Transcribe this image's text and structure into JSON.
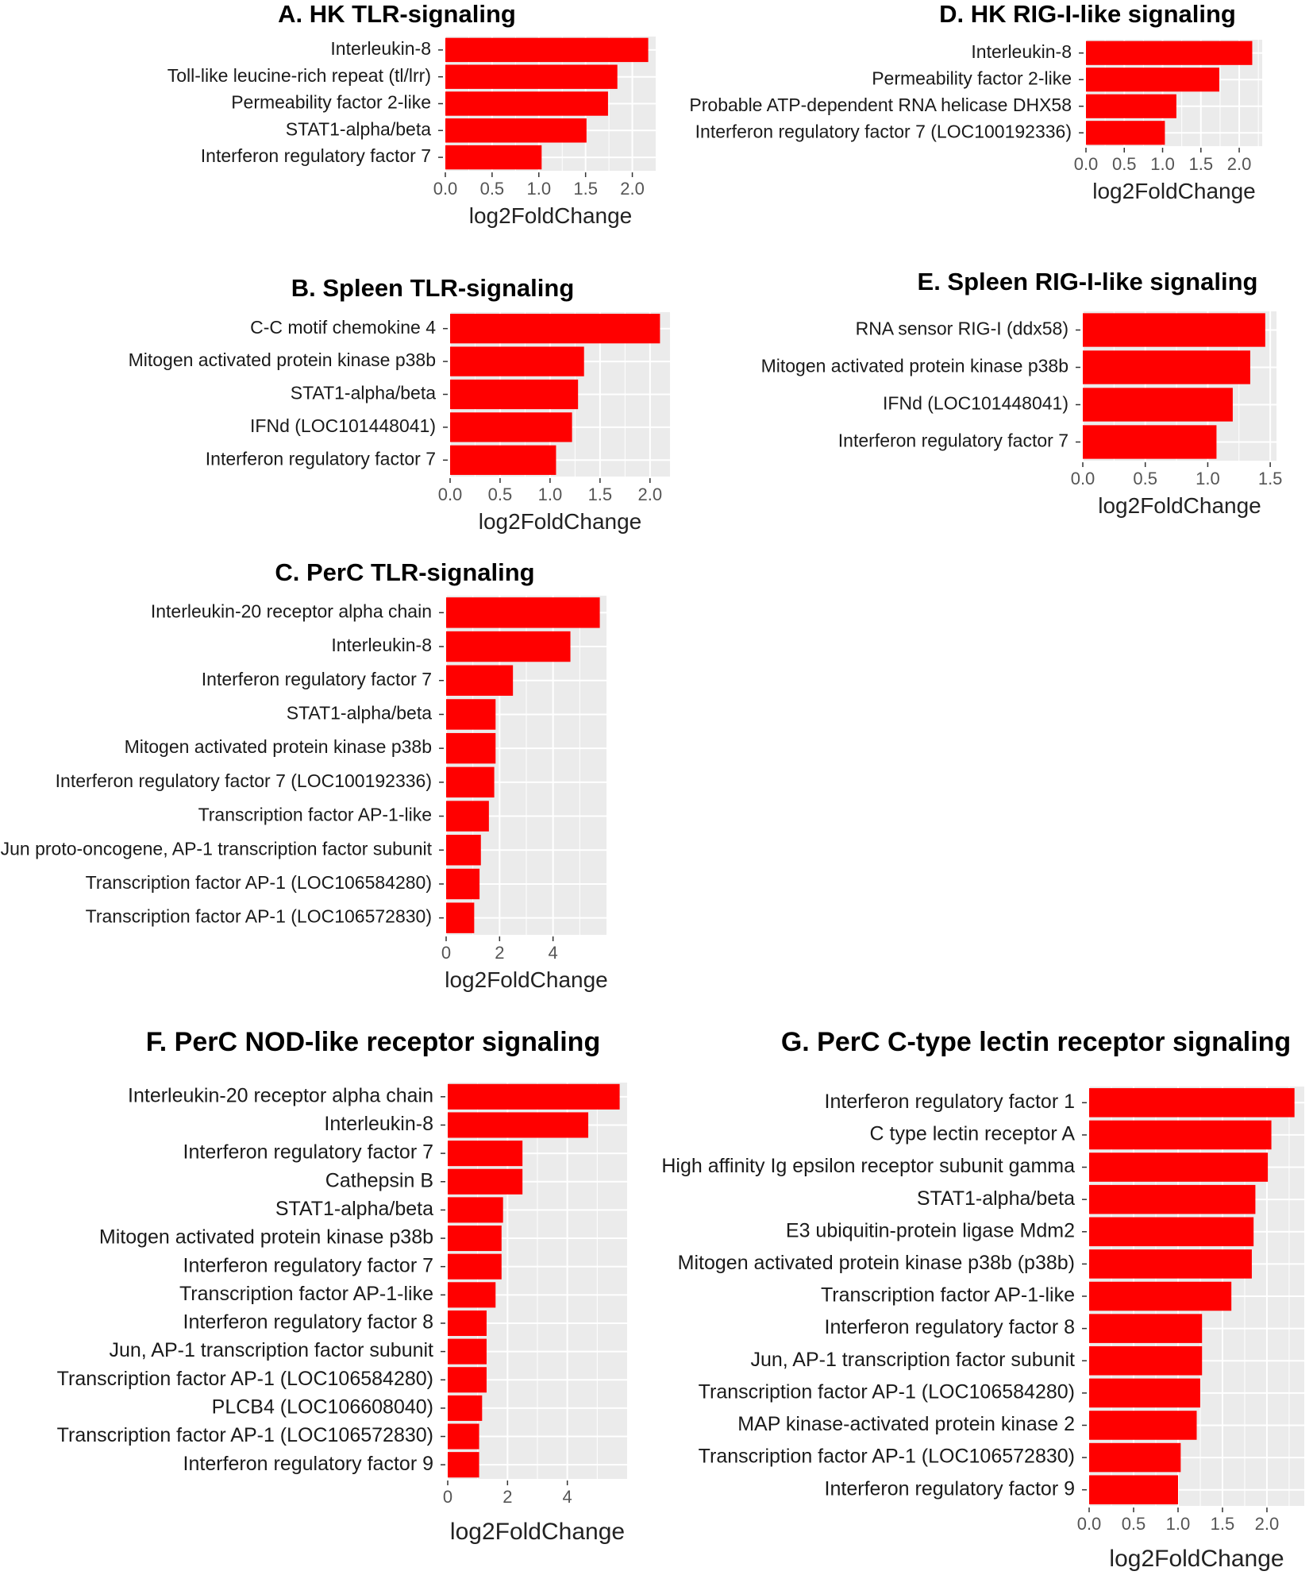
{
  "colors": {
    "bar": "#ff0000",
    "panel_bg": "#ebebeb",
    "grid": "#ffffff"
  },
  "chart_data": [
    {
      "id": "A",
      "type": "bar",
      "orientation": "horizontal",
      "title": "A. HK TLR-signaling",
      "xlabel": "log2FoldChange",
      "ylabel": "",
      "categories": [
        "Interleukin-8",
        "Toll-like leucine-rich repeat (tl/lrr)",
        "Permeability factor 2-like",
        "STAT1-alpha/beta",
        "Interferon regulatory factor 7"
      ],
      "values": [
        2.17,
        1.84,
        1.74,
        1.51,
        1.03
      ],
      "xlim": [
        0,
        2.25
      ],
      "xticks": [
        0,
        0.5,
        1,
        1.5,
        2
      ],
      "xtick_labels": [
        "0.0",
        "0.5",
        "1.0",
        "1.5",
        "2.0"
      ],
      "grid": true
    },
    {
      "id": "D",
      "type": "bar",
      "orientation": "horizontal",
      "title": "D. HK RIG-I-like signaling",
      "xlabel": "log2FoldChange",
      "ylabel": "",
      "categories": [
        "Interleukin-8",
        "Permeability factor 2-like",
        "Probable ATP-dependent RNA helicase DHX58",
        "Interferon regulatory factor 7 (LOC100192336)"
      ],
      "values": [
        2.17,
        1.74,
        1.18,
        1.03
      ],
      "xlim": [
        0,
        2.3
      ],
      "xticks": [
        0,
        0.5,
        1,
        1.5,
        2
      ],
      "xtick_labels": [
        "0.0",
        "0.5",
        "1.0",
        "1.5",
        "2.0"
      ],
      "grid": true
    },
    {
      "id": "B",
      "type": "bar",
      "orientation": "horizontal",
      "title": "B. Spleen TLR-signaling",
      "xlabel": "log2FoldChange",
      "ylabel": "",
      "categories": [
        "C-C motif chemokine 4",
        "Mitogen activated protein kinase p38b",
        "STAT1-alpha/beta",
        "IFNd (LOC101448041)",
        "Interferon regulatory factor 7"
      ],
      "values": [
        2.1,
        1.34,
        1.28,
        1.22,
        1.06
      ],
      "xlim": [
        0,
        2.2
      ],
      "xticks": [
        0,
        0.5,
        1,
        1.5,
        2
      ],
      "xtick_labels": [
        "0.0",
        "0.5",
        "1.0",
        "1.5",
        "2.0"
      ],
      "grid": true
    },
    {
      "id": "E",
      "type": "bar",
      "orientation": "horizontal",
      "title": "E. Spleen RIG-I-like signaling",
      "xlabel": "log2FoldChange",
      "ylabel": "",
      "categories": [
        "RNA sensor RIG-I (ddx58)",
        "Mitogen activated protein kinase p38b",
        "IFNd (LOC101448041)",
        "Interferon regulatory factor 7"
      ],
      "values": [
        1.46,
        1.34,
        1.2,
        1.07
      ],
      "xlim": [
        0,
        1.55
      ],
      "xticks": [
        0,
        0.5,
        1,
        1.5
      ],
      "xtick_labels": [
        "0.0",
        "0.5",
        "1.0",
        "1.5"
      ],
      "grid": true
    },
    {
      "id": "C",
      "type": "bar",
      "orientation": "horizontal",
      "title": "C. PerC TLR-signaling",
      "xlabel": "log2FoldChange",
      "ylabel": "",
      "categories": [
        "Interleukin-20 receptor alpha chain",
        "Interleukin-8",
        "Interferon regulatory factor 7",
        "STAT1-alpha/beta",
        "Mitogen activated protein kinase p38b",
        "Interferon regulatory factor 7 (LOC100192336)",
        "Transcription factor AP-1-like",
        "Jun proto-oncogene, AP-1 transcription factor subunit",
        "Transcription factor AP-1 (LOC106584280)",
        "Transcription factor AP-1 (LOC106572830)"
      ],
      "values": [
        5.75,
        4.65,
        2.5,
        1.85,
        1.85,
        1.8,
        1.6,
        1.3,
        1.25,
        1.05
      ],
      "xlim": [
        0,
        6.0
      ],
      "xticks": [
        0,
        2,
        4
      ],
      "xtick_labels": [
        "0",
        "2",
        "4"
      ],
      "grid": true
    },
    {
      "id": "F",
      "type": "bar",
      "orientation": "horizontal",
      "title": "F. PerC NOD-like receptor signaling",
      "xlabel": "log2FoldChange",
      "ylabel": "",
      "categories": [
        "Interleukin-20 receptor alpha chain",
        "Interleukin-8",
        "Interferon regulatory factor 7",
        "Cathepsin B",
        "STAT1-alpha/beta",
        "Mitogen activated protein kinase p38b",
        "Interferon regulatory factor 7",
        "Transcription factor AP-1-like",
        "Interferon regulatory factor 8",
        "Jun, AP-1 transcription factor subunit",
        "Transcription factor AP-1 (LOC106584280)",
        "PLCB4 (LOC106608040)",
        "Transcription factor AP-1 (LOC106572830)",
        "Interferon regulatory factor 9"
      ],
      "values": [
        5.75,
        4.7,
        2.5,
        2.5,
        1.85,
        1.8,
        1.8,
        1.6,
        1.3,
        1.3,
        1.3,
        1.15,
        1.05,
        1.05
      ],
      "xlim": [
        0,
        6.0
      ],
      "xticks": [
        0,
        2,
        4
      ],
      "xtick_labels": [
        "0",
        "2",
        "4"
      ],
      "grid": true
    },
    {
      "id": "G",
      "type": "bar",
      "orientation": "horizontal",
      "title": "G. PerC C-type lectin receptor signaling",
      "xlabel": "log2FoldChange",
      "ylabel": "",
      "categories": [
        "Interferon regulatory factor 1",
        "C type lectin receptor A",
        "High affinity Ig epsilon receptor subunit gamma",
        "STAT1-alpha/beta",
        "E3 ubiquitin-protein ligase Mdm2",
        "Mitogen activated protein kinase p38b (p38b)",
        "Transcription factor AP-1-like",
        "Interferon regulatory factor 8",
        "Jun, AP-1 transcription factor subunit",
        "Transcription factor AP-1 (LOC106584280)",
        "MAP kinase-activated protein kinase 2",
        "Transcription factor AP-1 (LOC106572830)",
        "Interferon regulatory factor 9"
      ],
      "values": [
        2.31,
        2.05,
        2.01,
        1.87,
        1.85,
        1.83,
        1.6,
        1.27,
        1.27,
        1.25,
        1.21,
        1.03,
        1.0
      ],
      "xlim": [
        0,
        2.42
      ],
      "xticks": [
        0,
        0.5,
        1,
        1.5,
        2
      ],
      "xtick_labels": [
        "0.0",
        "0.5",
        "1.0",
        "1.5",
        "2.0"
      ],
      "grid": true
    }
  ]
}
